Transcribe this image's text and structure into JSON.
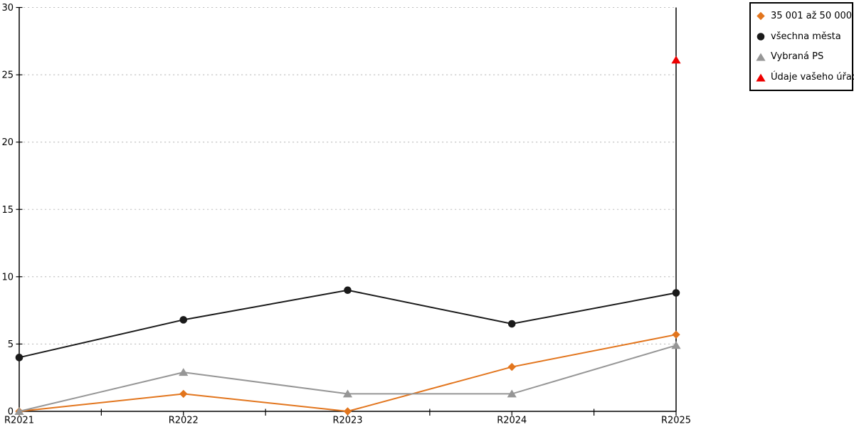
{
  "chart_data": {
    "type": "line",
    "title": "",
    "xlabel": "",
    "ylabel": "",
    "categories": [
      "R2021",
      "R2022",
      "R2023",
      "R2024",
      "R2025"
    ],
    "series": [
      {
        "name": "35 001 až 50 000",
        "marker": "diamond",
        "color": "#E2751D",
        "values": [
          0,
          1.3,
          0,
          3.3,
          5.7
        ]
      },
      {
        "name": "všechna města",
        "marker": "circle",
        "color": "#1A1A1A",
        "values": [
          4,
          6.8,
          9,
          6.5,
          8.8
        ]
      },
      {
        "name": "Vybraná PS",
        "marker": "triangle",
        "color": "#969696",
        "values": [
          0,
          2.9,
          1.3,
          1.3,
          4.9
        ]
      },
      {
        "name": "Údaje vašeho úřadu",
        "marker": "triangle",
        "color": "#EE0000",
        "values": [
          null,
          null,
          null,
          null,
          26.1
        ]
      }
    ],
    "ylim": [
      0,
      30
    ],
    "yticks": [
      0,
      5,
      10,
      15,
      20,
      25,
      30
    ],
    "grid": "horizontal-dotted",
    "legend_position": "top-right",
    "colors": {
      "grid": "#BFBFBF",
      "axis": "#000000",
      "background": "#FFFFFF",
      "text": "#000000"
    }
  }
}
